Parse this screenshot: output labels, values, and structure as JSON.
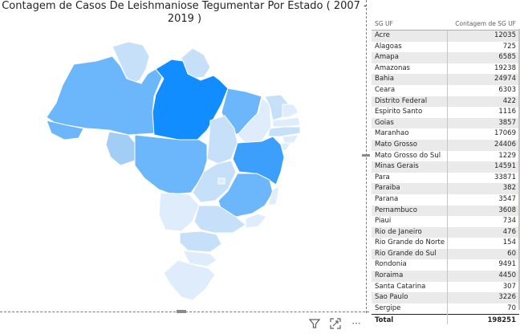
{
  "map": {
    "title": "Contagem de Casos De Leishmaniose Tegumentar Por Estado ( 2007 - 2019 )"
  },
  "table": {
    "col_state": "SG UF",
    "col_count": "Contagem de SG UF",
    "rows": [
      {
        "uf": "Acre",
        "count": "12035"
      },
      {
        "uf": "Alagoas",
        "count": "725"
      },
      {
        "uf": "Amapa",
        "count": "6585"
      },
      {
        "uf": "Amazonas",
        "count": "19238"
      },
      {
        "uf": "Bahia",
        "count": "24974"
      },
      {
        "uf": "Ceara",
        "count": "6303"
      },
      {
        "uf": "Distrito Federal",
        "count": "422"
      },
      {
        "uf": "Espirito Santo",
        "count": "1116"
      },
      {
        "uf": "Goias",
        "count": "3857"
      },
      {
        "uf": "Maranhao",
        "count": "17069"
      },
      {
        "uf": "Mato Grosso",
        "count": "24406"
      },
      {
        "uf": "Mato Grosso do Sul",
        "count": "1229"
      },
      {
        "uf": "Minas Gerais",
        "count": "14591"
      },
      {
        "uf": "Para",
        "count": "33871"
      },
      {
        "uf": "Paraiba",
        "count": "382"
      },
      {
        "uf": "Parana",
        "count": "3547"
      },
      {
        "uf": "Pernambuco",
        "count": "3608"
      },
      {
        "uf": "Piaui",
        "count": "734"
      },
      {
        "uf": "Rio de Janeiro",
        "count": "476"
      },
      {
        "uf": "Rio Grande do Norte",
        "count": "154"
      },
      {
        "uf": "Rio Grande do Sul",
        "count": "60"
      },
      {
        "uf": "Rondonia",
        "count": "9491"
      },
      {
        "uf": "Roraima",
        "count": "4450"
      },
      {
        "uf": "Santa Catarina",
        "count": "307"
      },
      {
        "uf": "Sao Paulo",
        "count": "3226"
      },
      {
        "uf": "Sergipe",
        "count": "70"
      }
    ],
    "total_label": "Total",
    "total_value": "198251"
  },
  "colors": {
    "very_high": "#118dff",
    "high": "#3c9ffc",
    "mid_high": "#6cb6fb",
    "mid": "#a2cdf5",
    "low": "#c7e0fa",
    "very_low": "#deecfb",
    "border": "#ffffff"
  },
  "toolbar": {
    "filter_icon": "filter-icon",
    "focus_icon": "focus-mode-icon",
    "more_icon": "more-options-icon",
    "more_label": "···"
  }
}
